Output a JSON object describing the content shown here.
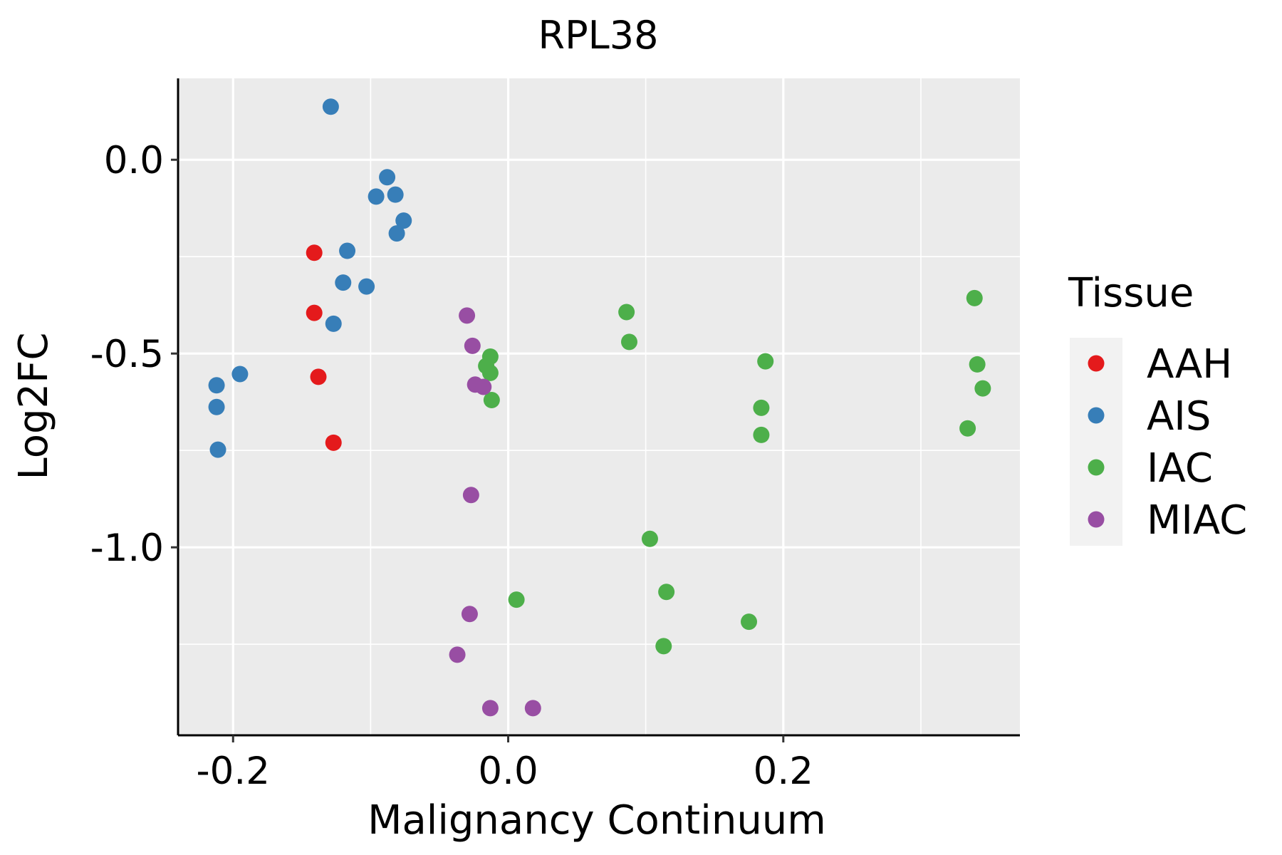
{
  "chart_data": {
    "type": "scatter",
    "title": "RPL38",
    "xlabel": "Malignancy Continuum",
    "ylabel": "Log2FC",
    "xlim": [
      -0.24,
      0.372
    ],
    "ylim": [
      -1.485,
      0.21
    ],
    "x_ticks": [
      -0.2,
      0.0,
      0.2
    ],
    "x_tick_labels": [
      "-0.2",
      "0.0",
      "0.2"
    ],
    "y_ticks": [
      0.0,
      -0.5,
      -1.0
    ],
    "y_tick_labels": [
      "0.0",
      "-0.5",
      "-1.0"
    ],
    "grid": true,
    "legend": {
      "title": "Tissue",
      "position": "right",
      "entries": [
        "AAH",
        "AIS",
        "IAC",
        "MIAC"
      ]
    },
    "colors": {
      "AAH": "#e41a1c",
      "AIS": "#377eb8",
      "IAC": "#4daf4a",
      "MIAC": "#984ea3",
      "panel_bg": "#ebebeb",
      "grid": "#ffffff"
    },
    "series": [
      {
        "name": "AAH",
        "points": [
          {
            "x": -0.141,
            "y": -0.24
          },
          {
            "x": -0.141,
            "y": -0.395
          },
          {
            "x": -0.138,
            "y": -0.56
          },
          {
            "x": -0.127,
            "y": -0.73
          }
        ]
      },
      {
        "name": "AIS",
        "points": [
          {
            "x": -0.129,
            "y": 0.137
          },
          {
            "x": -0.088,
            "y": -0.045
          },
          {
            "x": -0.096,
            "y": -0.095
          },
          {
            "x": -0.082,
            "y": -0.09
          },
          {
            "x": -0.076,
            "y": -0.157
          },
          {
            "x": -0.081,
            "y": -0.19
          },
          {
            "x": -0.117,
            "y": -0.235
          },
          {
            "x": -0.12,
            "y": -0.317
          },
          {
            "x": -0.103,
            "y": -0.327
          },
          {
            "x": -0.127,
            "y": -0.423
          },
          {
            "x": -0.195,
            "y": -0.553
          },
          {
            "x": -0.212,
            "y": -0.582
          },
          {
            "x": -0.212,
            "y": -0.638
          },
          {
            "x": -0.211,
            "y": -0.748
          }
        ]
      },
      {
        "name": "IAC",
        "points": [
          {
            "x": 0.086,
            "y": -0.393
          },
          {
            "x": 0.088,
            "y": -0.47
          },
          {
            "x": -0.013,
            "y": -0.508
          },
          {
            "x": -0.016,
            "y": -0.532
          },
          {
            "x": -0.013,
            "y": -0.55
          },
          {
            "x": -0.012,
            "y": -0.62
          },
          {
            "x": 0.103,
            "y": -0.978
          },
          {
            "x": 0.006,
            "y": -1.135
          },
          {
            "x": 0.115,
            "y": -1.115
          },
          {
            "x": 0.113,
            "y": -1.255
          },
          {
            "x": 0.175,
            "y": -1.192
          },
          {
            "x": 0.187,
            "y": -0.52
          },
          {
            "x": 0.184,
            "y": -0.64
          },
          {
            "x": 0.184,
            "y": -0.71
          },
          {
            "x": 0.339,
            "y": -0.357
          },
          {
            "x": 0.341,
            "y": -0.528
          },
          {
            "x": 0.345,
            "y": -0.59
          },
          {
            "x": 0.334,
            "y": -0.693
          }
        ]
      },
      {
        "name": "MIAC",
        "points": [
          {
            "x": -0.03,
            "y": -0.402
          },
          {
            "x": -0.026,
            "y": -0.48
          },
          {
            "x": -0.024,
            "y": -0.58
          },
          {
            "x": -0.018,
            "y": -0.586
          },
          {
            "x": -0.027,
            "y": -0.865
          },
          {
            "x": -0.028,
            "y": -1.172
          },
          {
            "x": -0.037,
            "y": -1.277
          },
          {
            "x": -0.013,
            "y": -1.415
          },
          {
            "x": 0.018,
            "y": -1.415
          }
        ]
      }
    ]
  }
}
